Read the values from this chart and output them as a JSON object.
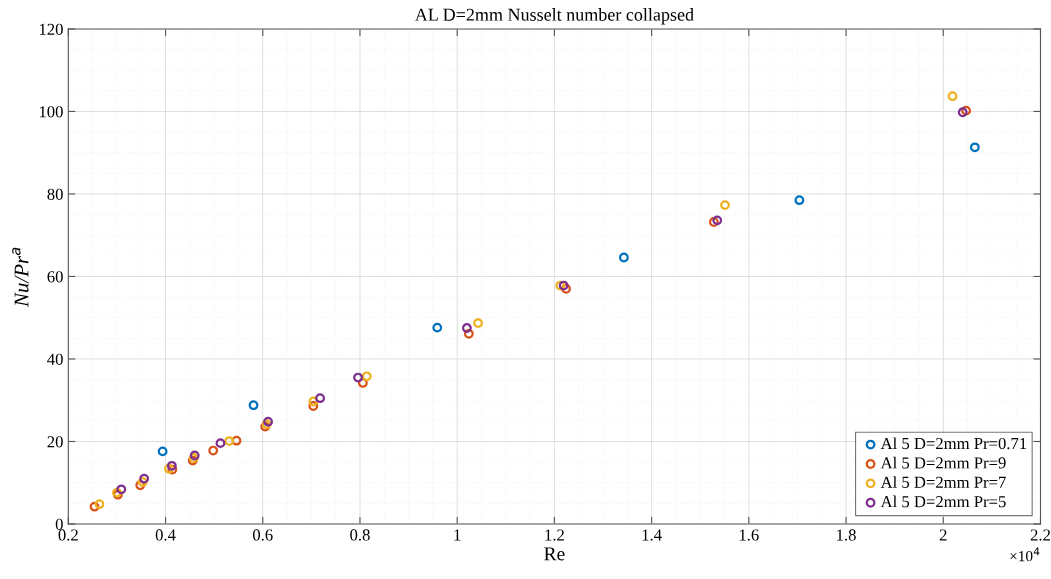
{
  "chart_data": {
    "type": "scatter",
    "title": "AL D=2mm Nusselt number collapsed",
    "xlabel": "Re",
    "ylabel": "Nu/Pr$^{a}$",
    "xlim": [
      0.2,
      2.2
    ],
    "xticks": [
      0.2,
      0.4,
      0.6,
      0.8,
      1,
      1.2,
      1.4,
      1.6,
      1.8,
      2,
      2.2
    ],
    "ylim": [
      0,
      120
    ],
    "yticks": [
      0,
      20,
      40,
      60,
      80,
      100,
      120
    ],
    "grid": true,
    "legend": "bottom right",
    "marker": "circle",
    "annotations": [
      "×10$^{4}$"
    ],
    "series": [
      {
        "name": "Al 5 D=2mm Pr=0.71",
        "color": "#0072bd",
        "x": [
          0.394,
          0.581,
          0.959,
          1.343,
          1.704,
          2.065
        ],
        "values": [
          17.6,
          28.8,
          47.6,
          64.6,
          78.5,
          91.3
        ]
      },
      {
        "name": "Al 5 D=2mm Pr=9",
        "color": "#d95319",
        "x": [
          0.254,
          0.302,
          0.348,
          0.414,
          0.456,
          0.498,
          0.546,
          0.605,
          0.704,
          0.806,
          1.024,
          1.224,
          1.528,
          2.047
        ],
        "values": [
          4.2,
          7.1,
          9.4,
          13.2,
          15.4,
          17.8,
          20.2,
          23.6,
          28.6,
          34.2,
          46.1,
          57.0,
          73.2,
          100.2
        ]
      },
      {
        "name": "Al 5 D=2mm Pr=7",
        "color": "#edb120",
        "x": [
          0.264,
          0.3,
          0.353,
          0.407,
          0.458,
          0.531,
          0.608,
          0.704,
          0.814,
          1.043,
          1.212,
          1.551,
          2.019
        ],
        "values": [
          4.8,
          7.6,
          10.2,
          13.4,
          16.0,
          20.1,
          24.2,
          29.7,
          35.8,
          48.7,
          57.8,
          77.3,
          103.7
        ]
      },
      {
        "name": "Al 5 D=2mm Pr=5",
        "color": "#7e2f8e",
        "x": [
          0.309,
          0.356,
          0.413,
          0.46,
          0.513,
          0.611,
          0.718,
          0.796,
          1.02,
          1.219,
          1.535,
          2.04
        ],
        "values": [
          8.4,
          11.0,
          14.1,
          16.6,
          19.6,
          24.8,
          30.5,
          35.5,
          47.5,
          57.8,
          73.6,
          99.8
        ]
      }
    ]
  }
}
